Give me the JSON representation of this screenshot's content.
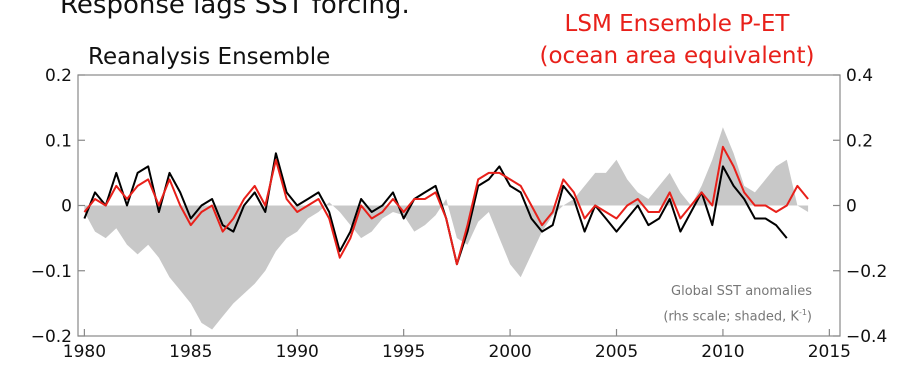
{
  "heading": "Response lags SST forcing.",
  "lhs_title": "Reanalysis Ensemble",
  "rhs_title_line1": "LSM Ensemble P-ET",
  "rhs_title_line2": "(ocean area equivalent)",
  "annotation_line1": "Global SST anomalies",
  "annotation_line2_prefix": "(rhs scale; shaded, K",
  "annotation_line2_sup": "-1",
  "annotation_line2_suffix": ")",
  "colors": {
    "reanalysis": "#000000",
    "lsm": "#e8201a",
    "sst": "#c8c8c8",
    "rhs_title": "#e8201a"
  },
  "chart_data": {
    "type": "line",
    "grid": false,
    "xlim": [
      1979.7,
      2015.5
    ],
    "ylim_left": [
      -0.2,
      0.2
    ],
    "ylim_right": [
      -0.4,
      0.4
    ],
    "x_ticks": [
      1980,
      1985,
      1990,
      1995,
      2000,
      2005,
      2010,
      2015
    ],
    "x_tick_labels": [
      "1980",
      "1985",
      "1990",
      "1995",
      "2000",
      "2005",
      "2010",
      "2015"
    ],
    "y_left_tick_labels": [
      "0.2",
      "0.1",
      "0",
      "−0.1",
      "−0.2"
    ],
    "y_right_tick_labels": [
      "0.4",
      "0.2",
      "0",
      "−0.2",
      "−0.4"
    ],
    "y_left_ticks": [
      0.2,
      0.1,
      0,
      -0.1,
      -0.2
    ],
    "y_right_ticks": [
      0.4,
      0.2,
      0,
      -0.2,
      -0.4
    ],
    "series": [
      {
        "axis": "right",
        "style": "shaded",
        "x": [
          1980,
          1980.5,
          1981,
          1981.5,
          1982,
          1982.5,
          1983,
          1983.5,
          1984,
          1984.5,
          1985,
          1985.5,
          1986,
          1986.5,
          1987,
          1987.5,
          1988,
          1988.5,
          1989,
          1989.5,
          1990,
          1990.5,
          1991,
          1991.5,
          1992,
          1992.5,
          1993,
          1993.5,
          1994,
          1994.5,
          1995,
          1995.5,
          1996,
          1996.5,
          1997,
          1997.5,
          1998,
          1998.5,
          1999,
          1999.5,
          2000,
          2000.5,
          2001,
          2001.5,
          2002,
          2002.5,
          2003,
          2003.5,
          2004,
          2004.5,
          2005,
          2005.5,
          2006,
          2006.5,
          2007,
          2007.5,
          2008,
          2008.5,
          2009,
          2009.5,
          2010,
          2010.5,
          2011,
          2011.5,
          2012,
          2012.5,
          2013,
          2013.5,
          2014
        ],
        "values": [
          -0.02,
          -0.08,
          -0.1,
          -0.07,
          -0.12,
          -0.15,
          -0.12,
          -0.16,
          -0.22,
          -0.26,
          -0.3,
          -0.36,
          -0.38,
          -0.34,
          -0.3,
          -0.27,
          -0.24,
          -0.2,
          -0.14,
          -0.1,
          -0.08,
          -0.04,
          -0.02,
          0.01,
          -0.02,
          -0.06,
          -0.1,
          -0.08,
          -0.04,
          -0.02,
          -0.03,
          -0.08,
          -0.06,
          -0.03,
          0.02,
          -0.1,
          -0.12,
          -0.05,
          -0.02,
          -0.1,
          -0.18,
          -0.22,
          -0.15,
          -0.08,
          -0.03,
          0.0,
          0.02,
          0.06,
          0.1,
          0.1,
          0.14,
          0.08,
          0.04,
          0.02,
          0.06,
          0.1,
          0.04,
          0.0,
          0.06,
          0.14,
          0.24,
          0.16,
          0.06,
          0.04,
          0.08,
          0.12,
          0.14,
          0.0,
          -0.02
        ]
      },
      {
        "name": "Reanalysis Ensemble",
        "axis": "left",
        "style": "line",
        "x": [
          1980,
          1980.5,
          1981,
          1981.5,
          1982,
          1982.5,
          1983,
          1983.5,
          1984,
          1984.5,
          1985,
          1985.5,
          1986,
          1986.5,
          1987,
          1987.5,
          1988,
          1988.5,
          1989,
          1989.5,
          1990,
          1990.5,
          1991,
          1991.5,
          1992,
          1992.5,
          1993,
          1993.5,
          1994,
          1994.5,
          1995,
          1995.5,
          1996,
          1996.5,
          1997,
          1997.5,
          1998,
          1998.5,
          1999,
          1999.5,
          2000,
          2000.5,
          2001,
          2001.5,
          2002,
          2002.5,
          2003,
          2003.5,
          2004,
          2004.5,
          2005,
          2005.5,
          2006,
          2006.5,
          2007,
          2007.5,
          2008,
          2008.5,
          2009,
          2009.5,
          2010,
          2010.5,
          2011,
          2011.5,
          2012,
          2012.5,
          2013
        ],
        "values": [
          -0.02,
          0.02,
          0.0,
          0.05,
          0.0,
          0.05,
          0.06,
          -0.01,
          0.05,
          0.02,
          -0.02,
          0.0,
          0.01,
          -0.03,
          -0.04,
          0.0,
          0.02,
          -0.01,
          0.08,
          0.02,
          0.0,
          0.01,
          0.02,
          -0.01,
          -0.07,
          -0.04,
          0.01,
          -0.01,
          0.0,
          0.02,
          -0.02,
          0.01,
          0.02,
          0.03,
          -0.02,
          -0.09,
          -0.04,
          0.03,
          0.04,
          0.06,
          0.03,
          0.02,
          -0.02,
          -0.04,
          -0.03,
          0.03,
          0.01,
          -0.04,
          0.0,
          -0.02,
          -0.04,
          -0.02,
          0.0,
          -0.03,
          -0.02,
          0.01,
          -0.04,
          -0.01,
          0.02,
          -0.03,
          0.06,
          0.03,
          0.01,
          -0.02,
          -0.02,
          -0.03,
          -0.05
        ]
      },
      {
        "name": "LSM Ensemble P-ET",
        "axis": "left",
        "style": "line",
        "x": [
          1980,
          1980.5,
          1981,
          1981.5,
          1982,
          1982.5,
          1983,
          1983.5,
          1984,
          1984.5,
          1985,
          1985.5,
          1986,
          1986.5,
          1987,
          1987.5,
          1988,
          1988.5,
          1989,
          1989.5,
          1990,
          1990.5,
          1991,
          1991.5,
          1992,
          1992.5,
          1993,
          1993.5,
          1994,
          1994.5,
          1995,
          1995.5,
          1996,
          1996.5,
          1997,
          1997.5,
          1998,
          1998.5,
          1999,
          1999.5,
          2000,
          2000.5,
          2001,
          2001.5,
          2002,
          2002.5,
          2003,
          2003.5,
          2004,
          2004.5,
          2005,
          2005.5,
          2006,
          2006.5,
          2007,
          2007.5,
          2008,
          2008.5,
          2009,
          2009.5,
          2010,
          2010.5,
          2011,
          2011.5,
          2012,
          2012.5,
          2013,
          2013.5,
          2014
        ],
        "values": [
          -0.01,
          0.01,
          0.0,
          0.03,
          0.01,
          0.03,
          0.04,
          0.0,
          0.04,
          0.0,
          -0.03,
          -0.01,
          0.0,
          -0.04,
          -0.02,
          0.01,
          0.03,
          0.0,
          0.07,
          0.01,
          -0.01,
          0.0,
          0.01,
          -0.02,
          -0.08,
          -0.05,
          0.0,
          -0.02,
          -0.01,
          0.01,
          -0.01,
          0.01,
          0.01,
          0.02,
          -0.02,
          -0.09,
          -0.03,
          0.04,
          0.05,
          0.05,
          0.04,
          0.03,
          0.0,
          -0.03,
          -0.01,
          0.04,
          0.02,
          -0.02,
          0.0,
          -0.01,
          -0.02,
          0.0,
          0.01,
          -0.01,
          -0.01,
          0.02,
          -0.02,
          0.0,
          0.02,
          0.0,
          0.09,
          0.06,
          0.02,
          0.0,
          0.0,
          -0.01,
          0.0,
          0.03,
          0.01
        ]
      }
    ]
  }
}
